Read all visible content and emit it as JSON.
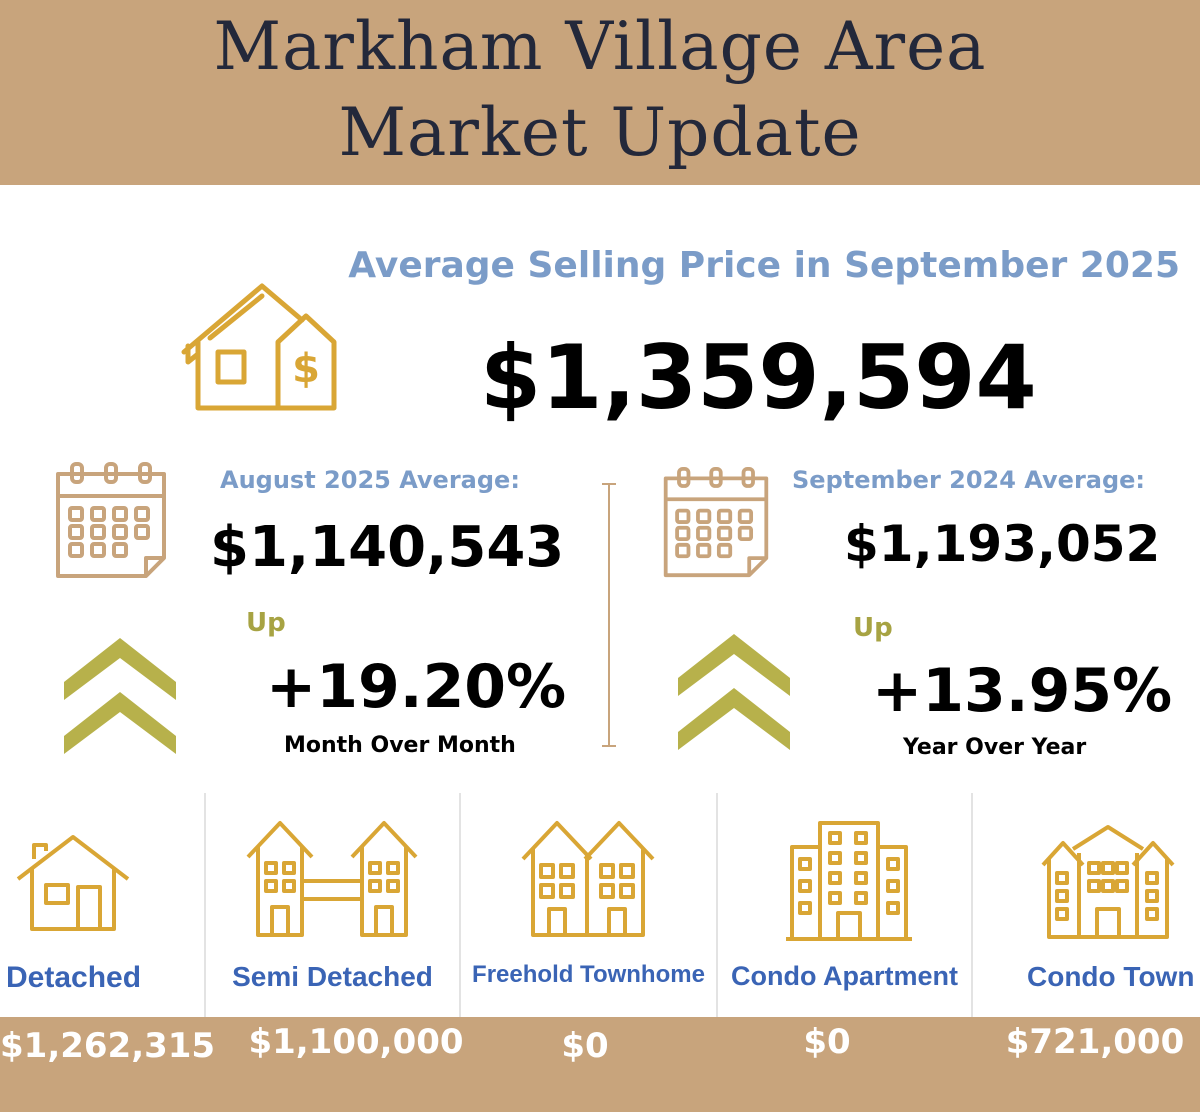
{
  "header": {
    "title_line1": "Markham Village Area",
    "title_line2": "Market Update"
  },
  "average": {
    "title": "Average Selling Price in September 2025",
    "price": "$1,359,594"
  },
  "month_compare": {
    "label": "August 2025 Average:",
    "price": "$1,140,543",
    "direction": "Up",
    "change": "+19.20%",
    "caption": "Month Over Month"
  },
  "year_compare": {
    "label": "September 2024 Average:",
    "price": "$1,193,052",
    "direction": "Up",
    "change": "+13.95%",
    "caption": "Year Over Year"
  },
  "property_types": [
    {
      "label": "Detached",
      "price": "$1,262,315",
      "icon": "detached-house-icon"
    },
    {
      "label": "Semi Detached",
      "price": "$1,100,000",
      "icon": "semi-detached-house-icon"
    },
    {
      "label": "Freehold Townhome",
      "price": "$0",
      "icon": "freehold-townhome-icon"
    },
    {
      "label": "Condo Apartment",
      "price": "$0",
      "icon": "condo-apartment-icon"
    },
    {
      "label": "Condo Town",
      "price": "$721,000",
      "icon": "condo-town-icon"
    }
  ],
  "colors": {
    "gold": "#c8a47c",
    "icon_gold": "#d9a635",
    "blue_label": "#7b9cc8",
    "type_blue": "#3a64b5",
    "olive": "#a7a343",
    "header_text": "#23283a"
  }
}
